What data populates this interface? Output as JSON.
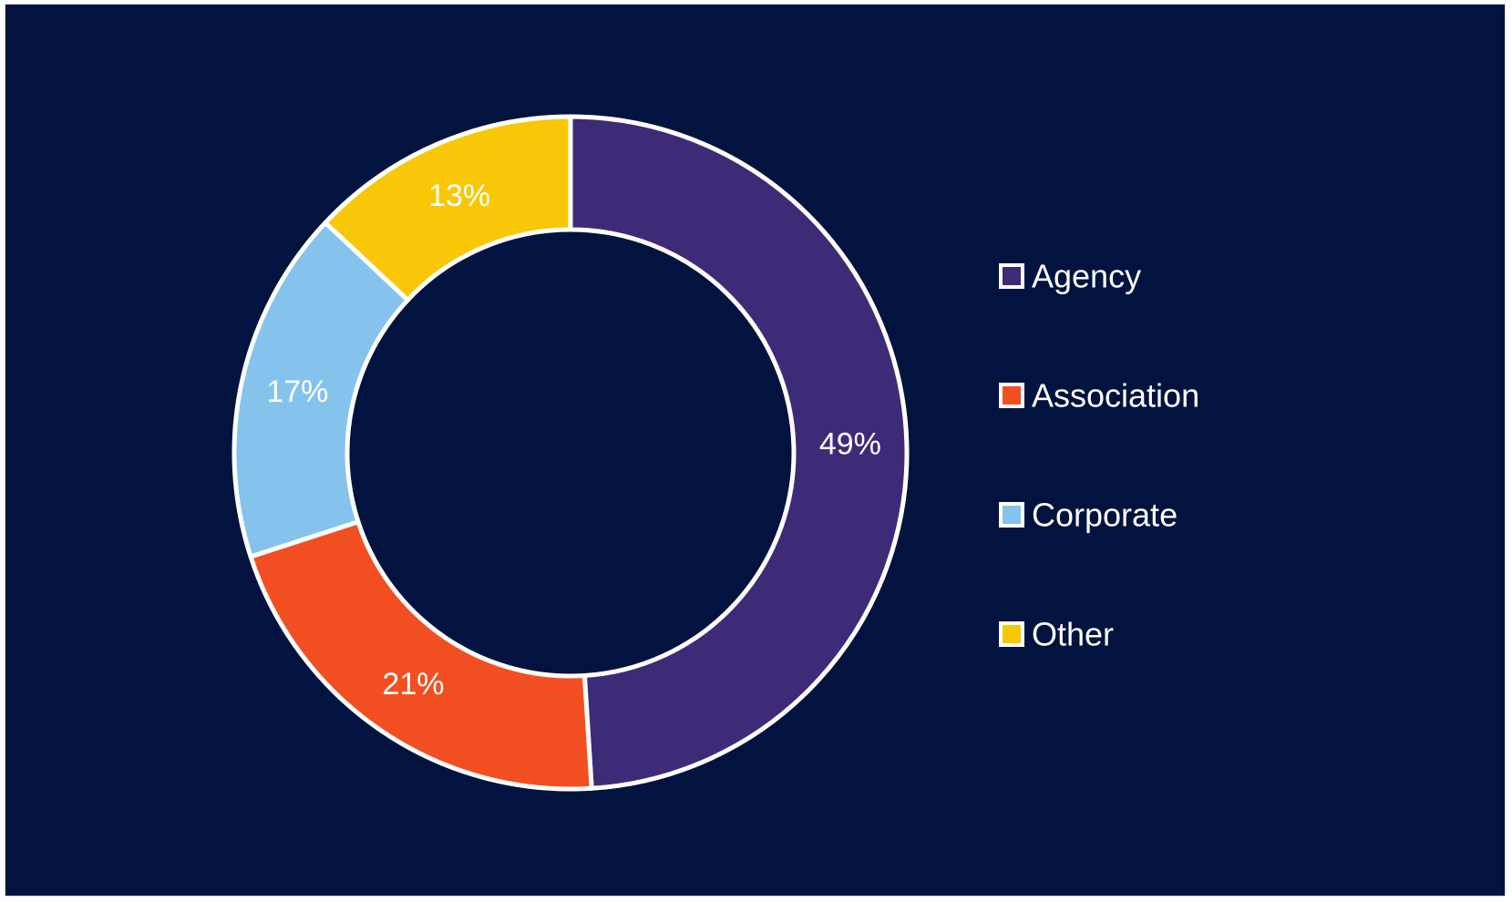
{
  "chart_data": {
    "type": "pie",
    "variant": "donut",
    "categories": [
      "Agency",
      "Association",
      "Corporate",
      "Other"
    ],
    "values": [
      49,
      21,
      17,
      13
    ],
    "labels": [
      "49%",
      "21%",
      "17%",
      "13%"
    ],
    "colors": [
      "#3d2b77",
      "#f14f21",
      "#85c3ec",
      "#f8c808"
    ],
    "background": "#03133f",
    "legend": {
      "placement": "right",
      "entries": [
        "Agency",
        "Association",
        "Corporate",
        "Other"
      ]
    }
  }
}
